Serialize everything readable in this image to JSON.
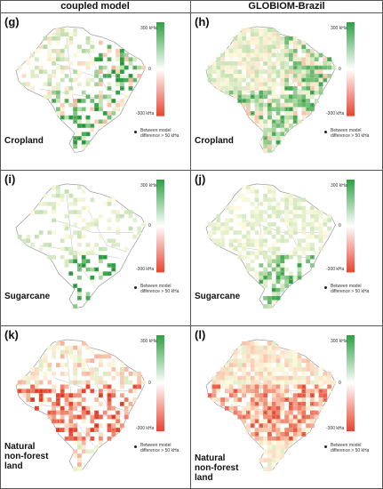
{
  "columns": [
    {
      "header": "coupled model"
    },
    {
      "header": "GLOBIOM-Brazil"
    }
  ],
  "panels": [
    {
      "letter": "(g)",
      "label": "Cropland",
      "seed": 11,
      "kind": "crop"
    },
    {
      "letter": "(h)",
      "label": "Cropland",
      "seed": 12,
      "kind": "cropG"
    },
    {
      "letter": "(i)",
      "label": "Sugarcane",
      "seed": 21,
      "kind": "sugar"
    },
    {
      "letter": "(j)",
      "label": "Sugarcane",
      "seed": 22,
      "kind": "sugarG"
    },
    {
      "letter": "(k)",
      "label": "Natural\nnon-forest\nland",
      "seed": 31,
      "kind": "nat"
    },
    {
      "letter": "(l)",
      "label": "Natural\nnon-forest\nland",
      "seed": 32,
      "kind": "natG"
    }
  ],
  "scale": {
    "top": "300 kHa",
    "mid": "0",
    "bottom": "-300 kHa",
    "colors": {
      "pos": "#2ea043",
      "zero": "#ffffff",
      "neg": "#e8432e"
    }
  },
  "legend": {
    "dot_text": "Between model\ndifference > 50 kHa"
  }
}
